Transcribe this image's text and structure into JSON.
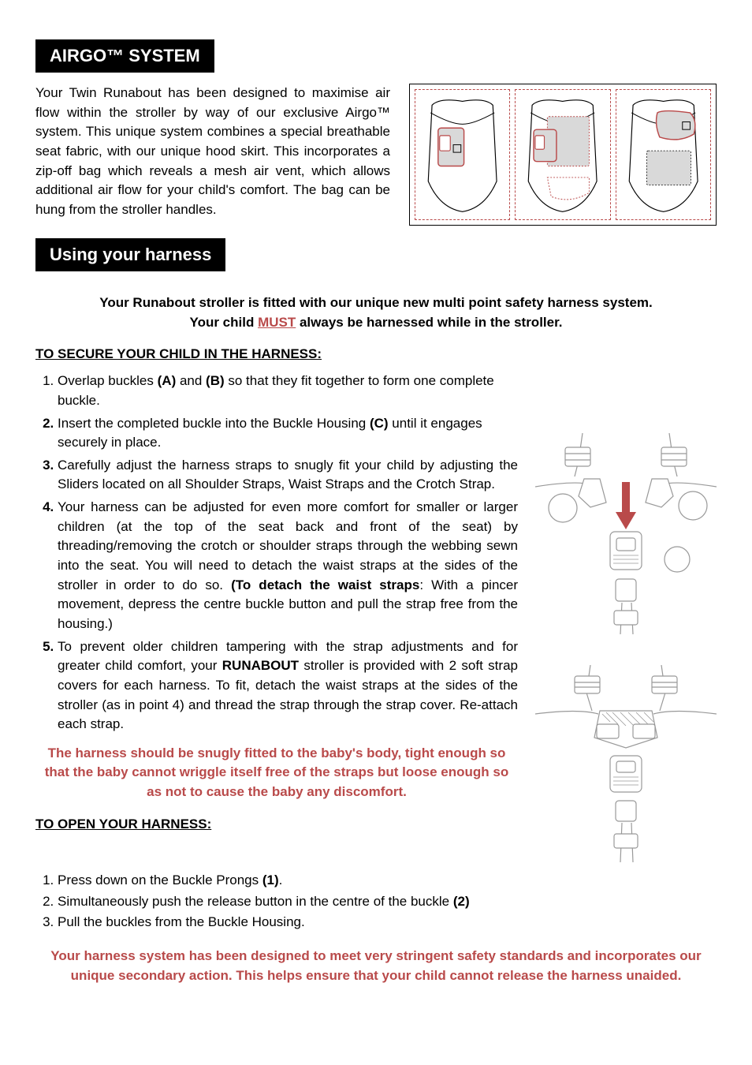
{
  "colors": {
    "text": "#000000",
    "bg": "#ffffff",
    "header_bg": "#000000",
    "header_fg": "#ffffff",
    "accent_red": "#b94a4a",
    "diagram_grey": "#d0d0d0"
  },
  "typography": {
    "body_family": "Verdana, Geneva, sans-serif",
    "header_family": "Arial, Helvetica, sans-serif",
    "body_size_pt": 12,
    "header_size_pt": 16
  },
  "section_airgo": {
    "title": "AIRGO™ SYSTEM",
    "body": "Your Twin Runabout has been designed to maximise air flow within the stroller by way of our exclusive Airgo™ system. This unique system combines a special breathable seat fabric, with our unique hood skirt. This incorporates a zip-off bag which reveals a mesh air vent, which allows additional air flow for your child's comfort. The bag can be hung from the stroller handles.",
    "diagram": {
      "panels": 3,
      "description": "Three stroller seat back illustrations showing zip-off bag states",
      "outline_color": "#b94a4a",
      "fill_color": "#d0d0d0"
    }
  },
  "section_harness": {
    "title": "Using your harness",
    "intro_line1": "Your Runabout stroller is fitted with our unique new multi point safety harness system.",
    "intro_line2_pre": "Your child ",
    "intro_must": "MUST",
    "intro_line2_post": " always be harnessed while in the stroller.",
    "secure_header": "TO SECURE YOUR CHILD IN THE HARNESS:",
    "steps": [
      {
        "num": "1.",
        "html": "Overlap buckles <span class='b'>(A)</span> and <span class='b'>(B)</span> so that they fit together to form one complete buckle.",
        "justify": false
      },
      {
        "num": "2.",
        "html": "Insert the completed buckle into the Buckle Housing <span class='b'>(C)</span> until it engages securely in place.",
        "justify": false
      },
      {
        "num": "3.",
        "html": "Carefully adjust the harness straps to snugly fit your child by adjusting the Sliders located on all Shoulder Straps, Waist Straps and the Crotch Strap.",
        "justify": true
      },
      {
        "num": "4.",
        "html": "Your harness can be adjusted for even more comfort for smaller or larger children (at the top of the seat back and front of the seat) by threading/removing the crotch or shoulder straps through the webbing sewn into the seat. You will need to detach the waist straps at the sides of the stroller in order to do so. <span class='b'>(To detach the waist straps</span>: With a pincer movement, depress the centre buckle button and pull the strap free from the housing.)",
        "justify": true
      },
      {
        "num": "5.",
        "html": "To prevent older children tampering with the strap adjustments and for greater child comfort, your <span class='b'>RUNABOUT</span> stroller is provided with 2 soft strap covers for each harness. To fit, detach the waist straps at the sides of the stroller (as in point 4) and thread the strap through the strap cover. Re-attach each strap.",
        "justify": true
      }
    ],
    "fit_callout": "The harness should be snugly fitted to the baby's body, tight enough so that the baby cannot wriggle itself free of the straps but loose enough so as not to cause the baby any discomfort.",
    "open_header": "TO OPEN YOUR HARNESS:",
    "open_steps": [
      "Press down on the Buckle Prongs (1).",
      "Simultaneously push the release button in the centre of the buckle (2)",
      "Pull the buckles from the Buckle Housing."
    ],
    "footer": "Your harness system has been designed to meet very stringent safety standards and incorporates our unique secondary action. This helps ensure that your child cannot release the harness unaided.",
    "diagrams": {
      "top": {
        "description": "Harness diagram with two shoulder buckles, red arrow pointing down into buckle housing, crotch strap below",
        "arrow_color": "#b94a4a",
        "line_color": "#888888"
      },
      "bottom": {
        "description": "Harness diagram with buckles assembled, hatched pattern on housing",
        "line_color": "#888888"
      }
    }
  }
}
